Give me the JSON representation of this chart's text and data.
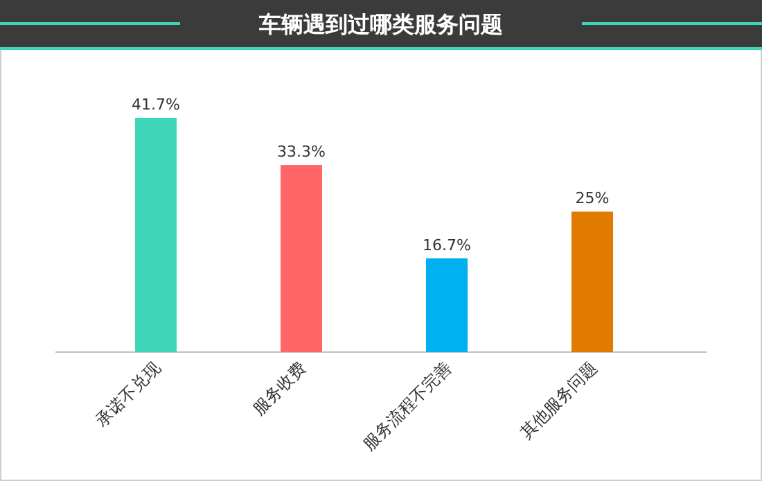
{
  "chart_data": {
    "type": "bar",
    "title": "车辆遇到过哪类服务问题",
    "categories": [
      "承诺不兑现",
      "服务收费",
      "服务流程不完善",
      "其他服务问题"
    ],
    "values": [
      41.7,
      33.3,
      16.7,
      25
    ],
    "colors": [
      "#3dd6b8",
      "#ff6666",
      "#00b0f0",
      "#e07b00"
    ],
    "value_labels": [
      "41.7%",
      "33.3%",
      "16.7%",
      "25%"
    ]
  }
}
